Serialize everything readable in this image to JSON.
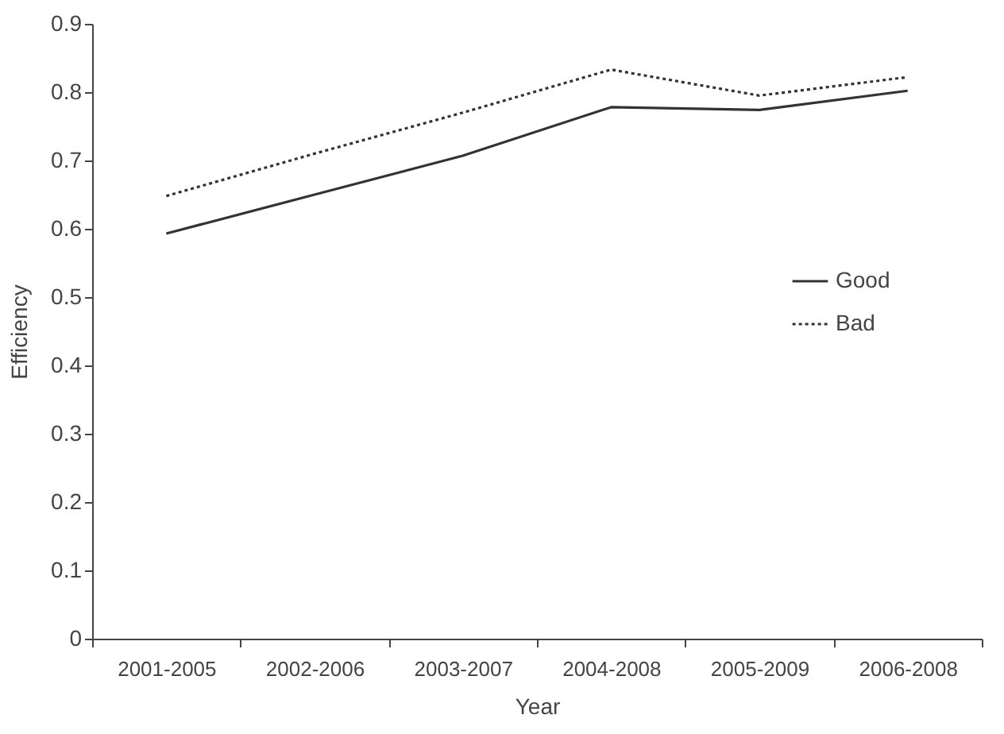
{
  "chart_data": {
    "type": "line",
    "xlabel": "Year",
    "ylabel": "Efficiency",
    "categories": [
      "2001-2005",
      "2002-2006",
      "2003-2007",
      "2004-2008",
      "2005-2009",
      "2006-2008"
    ],
    "series": [
      {
        "name": "Good",
        "color": "#333333",
        "line_style": "solid",
        "values": [
          0.593,
          0.65,
          0.707,
          0.778,
          0.774,
          0.802
        ]
      },
      {
        "name": "Bad",
        "color": "#333333",
        "line_style": "dotted",
        "values": [
          0.648,
          0.71,
          0.77,
          0.833,
          0.795,
          0.822
        ]
      }
    ],
    "ylim": [
      0,
      0.9
    ],
    "yticks": [
      0,
      0.1,
      0.2,
      0.3,
      0.4,
      0.5,
      0.6,
      0.7,
      0.8,
      0.9
    ],
    "grid": false,
    "legend": "right"
  }
}
